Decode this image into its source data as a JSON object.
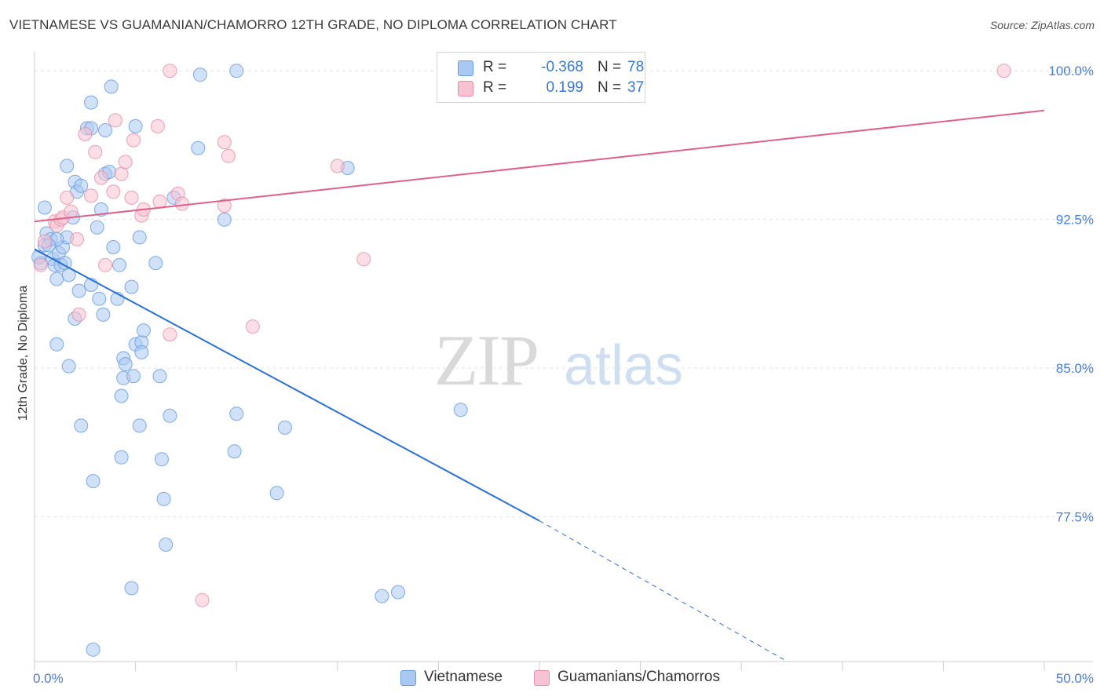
{
  "title": "VIETNAMESE VS GUAMANIAN/CHAMORRO 12TH GRADE, NO DIPLOMA CORRELATION CHART",
  "source": "Source: ZipAtlas.com",
  "watermark": {
    "zip": "ZIP",
    "atlas": "atlas"
  },
  "legend": {
    "rows": [
      {
        "r_label": "R =",
        "r_value": "-0.368",
        "n_label": "N =",
        "n_value": "78",
        "color": "#a9c9f2",
        "border": "#6a9ee0"
      },
      {
        "r_label": "R =",
        "r_value": "0.199",
        "n_label": "N =",
        "n_value": "37",
        "color": "#f7c2d2",
        "border": "#e890aa"
      }
    ]
  },
  "bottom_legend": [
    {
      "label": "Vietnamese",
      "color": "#a9c9f2",
      "border": "#6a9ee0"
    },
    {
      "label": "Guamanians/Chamorros",
      "color": "#f7c2d2",
      "border": "#e890aa"
    }
  ],
  "chart_data": {
    "type": "scatter",
    "title": "VIETNAMESE VS GUAMANIAN/CHAMORRO 12TH GRADE, NO DIPLOMA CORRELATION CHART",
    "xlabel": "",
    "ylabel": "12th Grade, No Diploma",
    "xlim": [
      0,
      50
    ],
    "ylim": [
      70.2,
      100.8
    ],
    "x_tick_labels": [
      "0.0%",
      "50.0%"
    ],
    "y_ticks": [
      77.5,
      85.0,
      92.5,
      100.0
    ],
    "y_tick_labels": [
      "77.5%",
      "85.0%",
      "92.5%",
      "100.0%"
    ],
    "grid": true,
    "series": [
      {
        "name": "Vietnamese",
        "color": "#a9c9f2",
        "stroke": "#6a9ee0",
        "line_color": "#2a6fd6",
        "trend": {
          "x0": 0,
          "y0": 91.0,
          "x1": 25.0,
          "y1": 77.3,
          "dash_to_x": 37.1,
          "dash_to_y": 70.3
        },
        "points": [
          [
            0.3,
            90.3
          ],
          [
            0.5,
            91.2
          ],
          [
            0.6,
            91.8
          ],
          [
            0.8,
            91.5
          ],
          [
            0.9,
            90.5
          ],
          [
            1.0,
            90.2
          ],
          [
            1.1,
            89.5
          ],
          [
            1.2,
            90.8
          ],
          [
            1.3,
            90.2
          ],
          [
            1.4,
            91.1
          ],
          [
            1.5,
            90.3
          ],
          [
            1.6,
            91.6
          ],
          [
            1.7,
            89.7
          ],
          [
            2.0,
            94.4
          ],
          [
            1.6,
            95.2
          ],
          [
            0.5,
            93.1
          ],
          [
            1.9,
            92.6
          ],
          [
            2.1,
            93.9
          ],
          [
            2.3,
            94.2
          ],
          [
            2.6,
            97.1
          ],
          [
            2.8,
            97.1
          ],
          [
            2.8,
            98.4
          ],
          [
            3.3,
            93.0
          ],
          [
            3.5,
            94.8
          ],
          [
            3.5,
            97.0
          ],
          [
            3.7,
            94.9
          ],
          [
            3.8,
            99.2
          ],
          [
            3.1,
            92.1
          ],
          [
            3.9,
            91.1
          ],
          [
            4.1,
            88.5
          ],
          [
            4.2,
            90.2
          ],
          [
            1.1,
            91.5
          ],
          [
            2.2,
            88.9
          ],
          [
            2.8,
            89.2
          ],
          [
            3.2,
            88.5
          ],
          [
            3.4,
            87.7
          ],
          [
            2.0,
            87.5
          ],
          [
            1.1,
            86.2
          ],
          [
            1.7,
            85.1
          ],
          [
            4.4,
            85.5
          ],
          [
            4.5,
            85.2
          ],
          [
            4.4,
            84.5
          ],
          [
            5.0,
            86.2
          ],
          [
            5.3,
            86.3
          ],
          [
            5.3,
            85.8
          ],
          [
            5.4,
            86.9
          ],
          [
            4.9,
            84.6
          ],
          [
            6.2,
            84.6
          ],
          [
            4.3,
            83.6
          ],
          [
            2.3,
            82.1
          ],
          [
            5.2,
            82.1
          ],
          [
            6.7,
            82.6
          ],
          [
            4.3,
            80.5
          ],
          [
            6.3,
            80.4
          ],
          [
            2.9,
            79.3
          ],
          [
            6.4,
            78.4
          ],
          [
            4.8,
            89.1
          ],
          [
            5.2,
            91.6
          ],
          [
            6.0,
            90.3
          ],
          [
            6.9,
            93.6
          ],
          [
            5.0,
            97.2
          ],
          [
            8.1,
            96.1
          ],
          [
            8.2,
            99.8
          ],
          [
            10.0,
            100.0
          ],
          [
            9.4,
            92.5
          ],
          [
            10.0,
            82.7
          ],
          [
            9.9,
            80.8
          ],
          [
            12.4,
            82.0
          ],
          [
            12.0,
            78.7
          ],
          [
            15.5,
            95.1
          ],
          [
            21.1,
            82.9
          ],
          [
            6.5,
            76.1
          ],
          [
            4.8,
            73.9
          ],
          [
            17.2,
            73.5
          ],
          [
            18.0,
            73.7
          ],
          [
            2.9,
            70.8
          ],
          [
            0.2,
            90.6
          ],
          [
            0.7,
            91.2
          ]
        ]
      },
      {
        "name": "Guamanians/Chamorros",
        "color": "#f7c2d2",
        "stroke": "#e890aa",
        "line_color": "#e0608a",
        "trend": {
          "x0": 0,
          "y0": 92.4,
          "x1": 50.0,
          "y1": 98.0
        },
        "points": [
          [
            0.3,
            90.2
          ],
          [
            0.5,
            91.4
          ],
          [
            1.0,
            92.4
          ],
          [
            1.1,
            92.2
          ],
          [
            1.3,
            92.5
          ],
          [
            1.4,
            92.6
          ],
          [
            1.6,
            93.6
          ],
          [
            1.8,
            92.9
          ],
          [
            2.1,
            91.5
          ],
          [
            2.2,
            87.7
          ],
          [
            2.5,
            96.8
          ],
          [
            2.8,
            93.7
          ],
          [
            3.0,
            95.9
          ],
          [
            3.3,
            94.6
          ],
          [
            3.5,
            90.2
          ],
          [
            3.9,
            93.9
          ],
          [
            4.0,
            97.5
          ],
          [
            4.3,
            94.8
          ],
          [
            4.5,
            95.4
          ],
          [
            4.8,
            93.6
          ],
          [
            4.9,
            96.5
          ],
          [
            5.3,
            92.7
          ],
          [
            5.4,
            93.0
          ],
          [
            6.1,
            97.2
          ],
          [
            6.2,
            93.4
          ],
          [
            6.7,
            86.7
          ],
          [
            7.1,
            93.8
          ],
          [
            7.3,
            93.3
          ],
          [
            6.7,
            100.0
          ],
          [
            8.3,
            73.3
          ],
          [
            9.4,
            96.4
          ],
          [
            9.6,
            95.7
          ],
          [
            9.4,
            93.2
          ],
          [
            10.8,
            87.1
          ],
          [
            15.0,
            95.2
          ],
          [
            16.3,
            90.5
          ],
          [
            48.0,
            100.0
          ]
        ]
      }
    ]
  }
}
